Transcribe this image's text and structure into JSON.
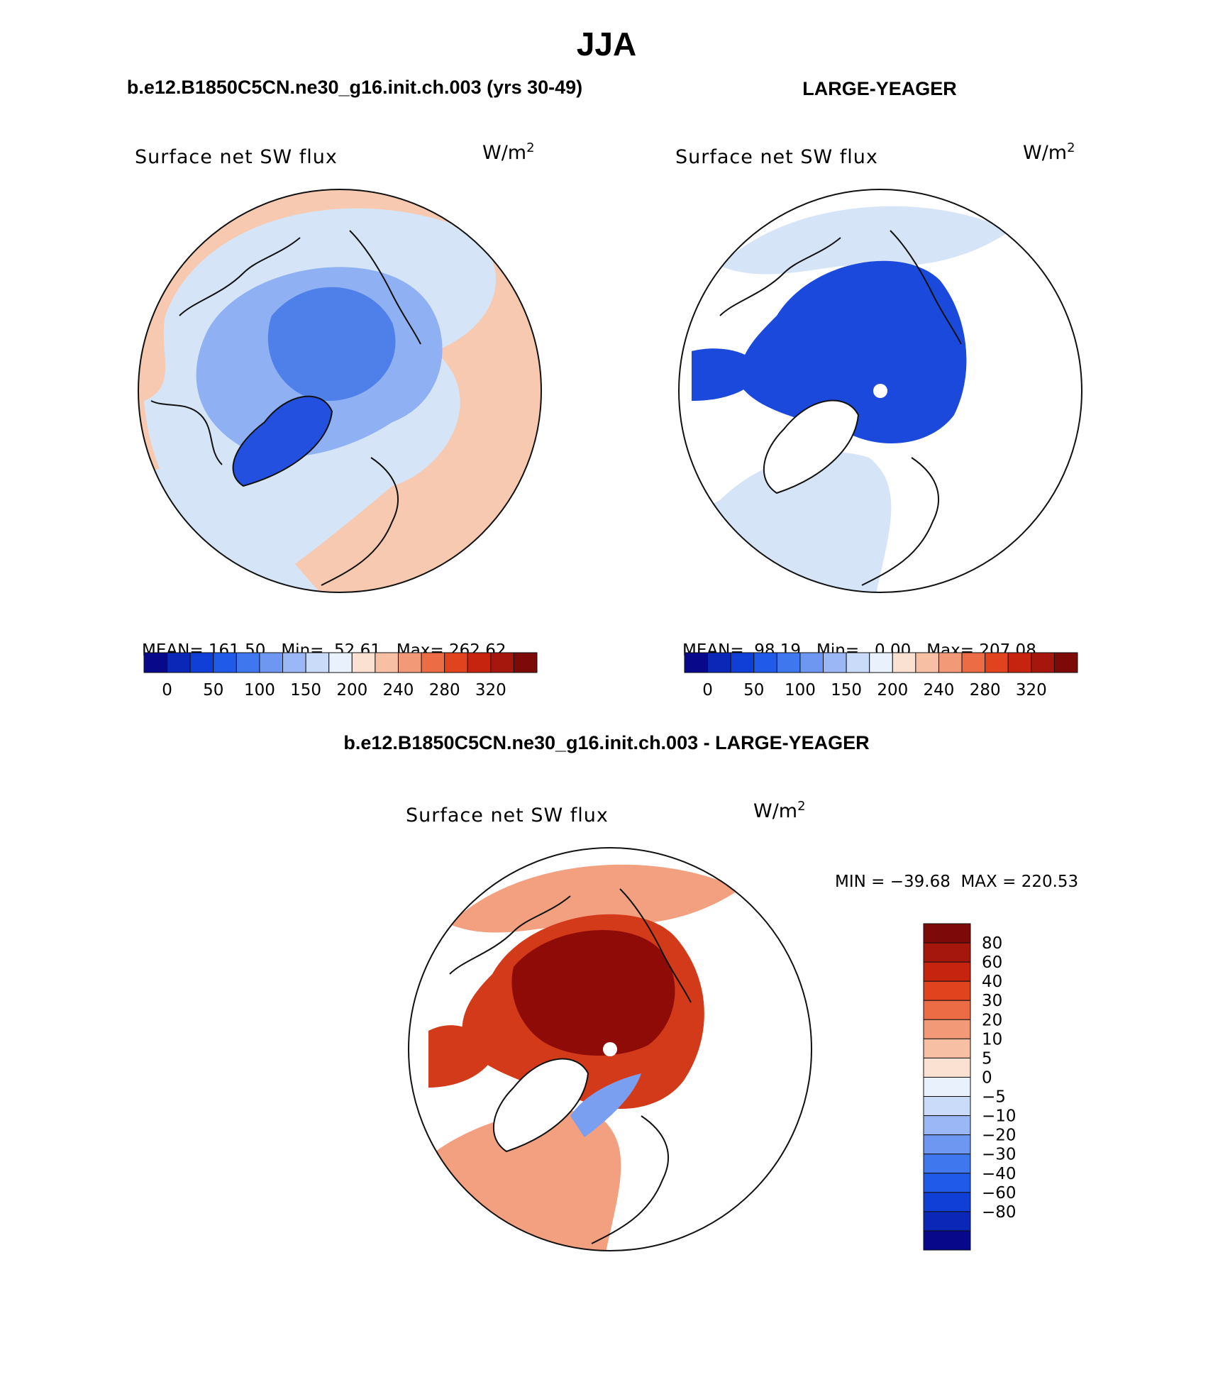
{
  "figure": {
    "title": "JJA",
    "panel1_header": "b.e12.B1850C5CN.ne30_g16.init.ch.003 (yrs 30-49)",
    "panel2_header": "LARGE-YEAGER",
    "diff_header": "b.e12.B1850C5CN.ne30_g16.init.ch.003 - LARGE-YEAGER"
  },
  "panels": [
    {
      "variable": "Surface net SW flux",
      "units": "W/m",
      "units_exp": "2",
      "stats": {
        "mean_label": "MEAN=",
        "mean": "161.50",
        "min_label": "Min=",
        "min": "52.61",
        "max_label": "Max=",
        "max": "262.62"
      }
    },
    {
      "variable": "Surface net SW flux",
      "units": "W/m",
      "units_exp": "2",
      "stats": {
        "mean_label": "MEAN=",
        "mean": "98.19",
        "min_label": "Min=",
        "min": "0.00",
        "max_label": "Max=",
        "max": "207.08"
      }
    },
    {
      "variable": "Surface net SW flux",
      "units": "W/m",
      "units_exp": "2",
      "minmax": "MIN = −39.68  MAX = 220.53"
    }
  ],
  "colorbar_abs": {
    "colors": [
      "#08088a",
      "#0a27b8",
      "#0f3fd6",
      "#1f5ae8",
      "#3f78ee",
      "#6e97f2",
      "#9cb7f5",
      "#c9dbf8",
      "#e8f1fc",
      "#fbe1d2",
      "#f7c0a4",
      "#f29a78",
      "#ec6c45",
      "#e2431f",
      "#c6240f",
      "#a5170c",
      "#7d0908"
    ],
    "tick_labels": [
      "0",
      "50",
      "100",
      "150",
      "200",
      "240",
      "280",
      "320"
    ]
  },
  "colorbar_diff": {
    "colors": [
      "#7d0908",
      "#a5170c",
      "#c6240f",
      "#e2431f",
      "#ec6c45",
      "#f29a78",
      "#f7c0a4",
      "#fbe1d2",
      "#e8f1fc",
      "#c9dbf8",
      "#9cb7f5",
      "#6e97f2",
      "#3f78ee",
      "#1f5ae8",
      "#0f3fd6",
      "#0a27b8",
      "#08088a"
    ],
    "tick_labels": [
      "80",
      "60",
      "40",
      "30",
      "20",
      "10",
      "5",
      "0",
      "−5",
      "−10",
      "−20",
      "−30",
      "−40",
      "−60",
      "−80"
    ]
  },
  "map_colors": {
    "p1_ocean_warm": "#f6c9b0",
    "p1_land_light": "#d6e4f8",
    "p1_ice_mid": "#8fb0f2",
    "p1_ice_core": "#4f7fe9",
    "p1_greenland": "#2450e0",
    "p2_ice": "#1b49dc",
    "p2_sea": "#d6e4f8",
    "diff_core": "#8f0b08",
    "diff_mid": "#d23a1a",
    "diff_light": "#f2a080",
    "diff_neg": "#7a9ef0"
  }
}
